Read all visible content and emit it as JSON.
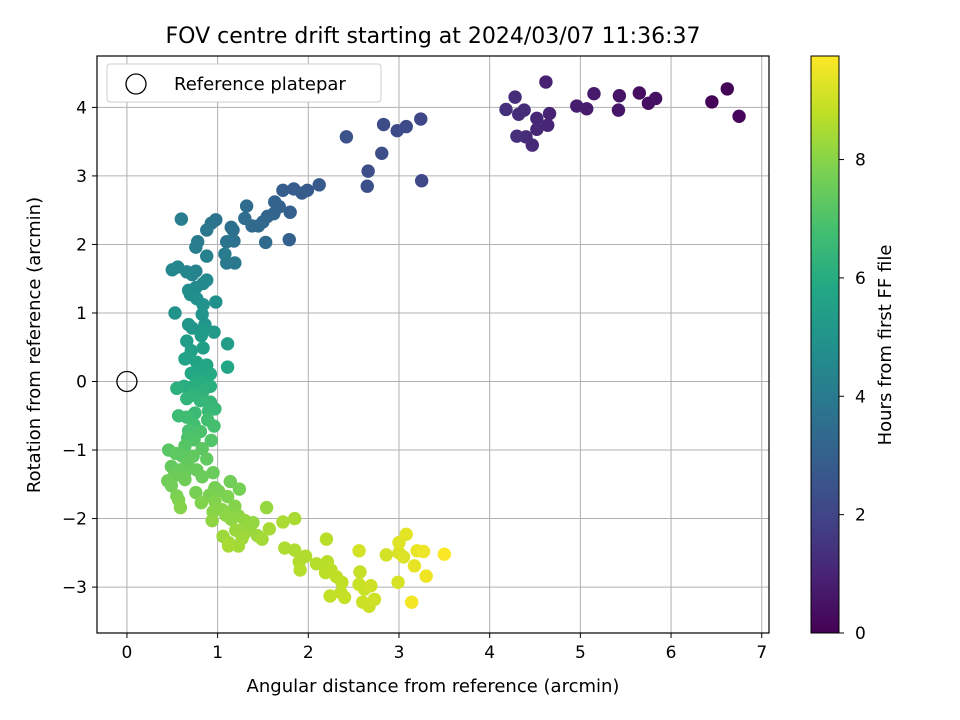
{
  "chart_data": {
    "type": "scatter",
    "title": "FOV centre drift starting at 2024/03/07 11:36:37",
    "xlabel": "Angular distance from reference (arcmin)",
    "ylabel": "Rotation from reference (arcmin)",
    "xlim": [
      -0.33,
      7.08
    ],
    "ylim": [
      -3.67,
      4.75
    ],
    "xticks": [
      0,
      1,
      2,
      3,
      4,
      5,
      6,
      7
    ],
    "yticks": [
      -3,
      -2,
      -1,
      0,
      1,
      2,
      3,
      4
    ],
    "tick_labels_x": [
      "0",
      "1",
      "2",
      "3",
      "4",
      "5",
      "6",
      "7"
    ],
    "tick_labels_y": [
      "−3",
      "−2",
      "−1",
      "0",
      "1",
      "2",
      "3",
      "4"
    ],
    "grid": true,
    "colormap": "viridis",
    "colorbar": {
      "label": "Hours from first FF file",
      "range": [
        0,
        9.75
      ],
      "ticks": [
        0,
        2,
        4,
        6,
        8
      ],
      "tick_labels": [
        "0",
        "2",
        "4",
        "6",
        "8"
      ]
    },
    "legend": {
      "position": "top-left",
      "entries": [
        {
          "label": "Reference platepar",
          "marker": "open-circle",
          "color": "#000000"
        }
      ]
    },
    "reference_point": {
      "x": 0,
      "y": 0
    },
    "points": [
      {
        "x": 6.45,
        "y": 4.08,
        "t": 0.05
      },
      {
        "x": 6.62,
        "y": 4.27,
        "t": 0.1
      },
      {
        "x": 6.75,
        "y": 3.87,
        "t": 0.15
      },
      {
        "x": 5.65,
        "y": 4.21,
        "t": 0.35
      },
      {
        "x": 5.75,
        "y": 4.06,
        "t": 0.4
      },
      {
        "x": 5.83,
        "y": 4.13,
        "t": 0.45
      },
      {
        "x": 5.43,
        "y": 4.17,
        "t": 0.55
      },
      {
        "x": 5.42,
        "y": 3.96,
        "t": 0.6
      },
      {
        "x": 5.15,
        "y": 4.2,
        "t": 0.7
      },
      {
        "x": 5.07,
        "y": 3.98,
        "t": 0.75
      },
      {
        "x": 4.96,
        "y": 4.02,
        "t": 0.8
      },
      {
        "x": 4.62,
        "y": 4.37,
        "t": 0.9
      },
      {
        "x": 4.66,
        "y": 3.91,
        "t": 0.95
      },
      {
        "x": 4.64,
        "y": 3.74,
        "t": 1.0
      },
      {
        "x": 4.52,
        "y": 3.84,
        "t": 1.05
      },
      {
        "x": 4.52,
        "y": 3.68,
        "t": 1.1
      },
      {
        "x": 4.47,
        "y": 3.45,
        "t": 1.15
      },
      {
        "x": 4.4,
        "y": 3.57,
        "t": 1.2
      },
      {
        "x": 4.38,
        "y": 3.96,
        "t": 1.2
      },
      {
        "x": 4.32,
        "y": 3.9,
        "t": 1.25
      },
      {
        "x": 4.28,
        "y": 4.15,
        "t": 1.25
      },
      {
        "x": 4.3,
        "y": 3.58,
        "t": 1.3
      },
      {
        "x": 4.18,
        "y": 3.97,
        "t": 1.35
      },
      {
        "x": 3.24,
        "y": 3.83,
        "t": 2.05
      },
      {
        "x": 3.25,
        "y": 2.93,
        "t": 2.1
      },
      {
        "x": 3.08,
        "y": 3.72,
        "t": 2.15
      },
      {
        "x": 2.98,
        "y": 3.66,
        "t": 2.2
      },
      {
        "x": 2.83,
        "y": 3.75,
        "t": 2.25
      },
      {
        "x": 2.81,
        "y": 3.33,
        "t": 2.3
      },
      {
        "x": 2.66,
        "y": 3.07,
        "t": 2.35
      },
      {
        "x": 2.65,
        "y": 2.85,
        "t": 2.4
      },
      {
        "x": 2.42,
        "y": 3.57,
        "t": 2.45
      },
      {
        "x": 2.12,
        "y": 2.87,
        "t": 2.7
      },
      {
        "x": 1.99,
        "y": 2.79,
        "t": 2.75
      },
      {
        "x": 1.93,
        "y": 2.75,
        "t": 2.8
      },
      {
        "x": 1.84,
        "y": 2.81,
        "t": 2.85
      },
      {
        "x": 1.72,
        "y": 2.79,
        "t": 2.9
      },
      {
        "x": 1.8,
        "y": 2.47,
        "t": 2.95
      },
      {
        "x": 1.79,
        "y": 2.07,
        "t": 3.0
      },
      {
        "x": 1.68,
        "y": 2.55,
        "t": 3.05
      },
      {
        "x": 1.63,
        "y": 2.62,
        "t": 3.1
      },
      {
        "x": 1.62,
        "y": 2.45,
        "t": 3.15
      },
      {
        "x": 1.55,
        "y": 2.41,
        "t": 3.2
      },
      {
        "x": 1.5,
        "y": 2.33,
        "t": 3.25
      },
      {
        "x": 1.45,
        "y": 2.27,
        "t": 3.3
      },
      {
        "x": 1.38,
        "y": 2.27,
        "t": 3.35
      },
      {
        "x": 1.53,
        "y": 2.03,
        "t": 3.4
      },
      {
        "x": 1.32,
        "y": 2.56,
        "t": 3.45
      },
      {
        "x": 1.3,
        "y": 2.38,
        "t": 3.5
      },
      {
        "x": 1.17,
        "y": 2.21,
        "t": 3.55
      },
      {
        "x": 1.15,
        "y": 2.25,
        "t": 3.6
      },
      {
        "x": 1.18,
        "y": 2.05,
        "t": 3.65
      },
      {
        "x": 1.1,
        "y": 2.04,
        "t": 3.7
      },
      {
        "x": 0.98,
        "y": 2.36,
        "t": 3.75
      },
      {
        "x": 0.93,
        "y": 2.31,
        "t": 3.8
      },
      {
        "x": 0.88,
        "y": 2.21,
        "t": 3.85
      },
      {
        "x": 1.19,
        "y": 1.73,
        "t": 3.9
      },
      {
        "x": 1.1,
        "y": 1.73,
        "t": 3.95
      },
      {
        "x": 1.08,
        "y": 1.86,
        "t": 4.0
      },
      {
        "x": 0.78,
        "y": 2.04,
        "t": 4.05
      },
      {
        "x": 0.76,
        "y": 1.96,
        "t": 4.1
      },
      {
        "x": 0.6,
        "y": 2.37,
        "t": 4.15
      },
      {
        "x": 0.88,
        "y": 1.83,
        "t": 4.2
      },
      {
        "x": 0.76,
        "y": 1.61,
        "t": 4.3
      },
      {
        "x": 0.72,
        "y": 1.56,
        "t": 4.35
      },
      {
        "x": 0.66,
        "y": 1.6,
        "t": 4.4
      },
      {
        "x": 0.56,
        "y": 1.67,
        "t": 4.45
      },
      {
        "x": 0.5,
        "y": 1.63,
        "t": 4.5
      },
      {
        "x": 0.88,
        "y": 1.48,
        "t": 4.55
      },
      {
        "x": 0.84,
        "y": 1.43,
        "t": 4.6
      },
      {
        "x": 0.76,
        "y": 1.37,
        "t": 4.65
      },
      {
        "x": 0.68,
        "y": 1.33,
        "t": 4.7
      },
      {
        "x": 0.7,
        "y": 1.27,
        "t": 4.75
      },
      {
        "x": 0.77,
        "y": 1.21,
        "t": 4.8
      },
      {
        "x": 0.98,
        "y": 1.16,
        "t": 4.85
      },
      {
        "x": 0.84,
        "y": 1.12,
        "t": 4.9
      },
      {
        "x": 0.53,
        "y": 1.0,
        "t": 4.95
      },
      {
        "x": 0.83,
        "y": 0.98,
        "t": 5.0
      },
      {
        "x": 0.86,
        "y": 0.83,
        "t": 5.05
      },
      {
        "x": 0.68,
        "y": 0.83,
        "t": 5.1
      },
      {
        "x": 0.72,
        "y": 0.78,
        "t": 5.15
      },
      {
        "x": 0.86,
        "y": 0.76,
        "t": 5.2
      },
      {
        "x": 0.96,
        "y": 0.72,
        "t": 5.25
      },
      {
        "x": 0.82,
        "y": 0.67,
        "t": 5.3
      },
      {
        "x": 0.66,
        "y": 0.59,
        "t": 5.35
      },
      {
        "x": 1.11,
        "y": 0.55,
        "t": 5.4
      },
      {
        "x": 0.84,
        "y": 0.49,
        "t": 5.45
      },
      {
        "x": 0.71,
        "y": 0.45,
        "t": 5.5
      },
      {
        "x": 0.67,
        "y": 0.35,
        "t": 5.55
      },
      {
        "x": 0.64,
        "y": 0.33,
        "t": 5.6
      },
      {
        "x": 0.77,
        "y": 0.28,
        "t": 5.65
      },
      {
        "x": 0.88,
        "y": 0.24,
        "t": 5.7
      },
      {
        "x": 1.11,
        "y": 0.21,
        "t": 5.75
      },
      {
        "x": 0.82,
        "y": 0.16,
        "t": 5.8
      },
      {
        "x": 0.71,
        "y": 0.12,
        "t": 5.85
      },
      {
        "x": 0.92,
        "y": 0.11,
        "t": 5.9
      },
      {
        "x": 0.78,
        "y": 0.04,
        "t": 5.95
      },
      {
        "x": 0.84,
        "y": -0.02,
        "t": 6.0
      },
      {
        "x": 0.63,
        "y": -0.07,
        "t": 6.05
      },
      {
        "x": 0.74,
        "y": -0.06,
        "t": 6.1
      },
      {
        "x": 0.92,
        "y": -0.07,
        "t": 6.15
      },
      {
        "x": 0.55,
        "y": -0.1,
        "t": 6.2
      },
      {
        "x": 0.84,
        "y": -0.14,
        "t": 6.25
      },
      {
        "x": 0.73,
        "y": -0.2,
        "t": 6.3
      },
      {
        "x": 0.66,
        "y": -0.25,
        "t": 6.35
      },
      {
        "x": 0.81,
        "y": -0.28,
        "t": 6.4
      },
      {
        "x": 0.92,
        "y": -0.3,
        "t": 6.45
      },
      {
        "x": 0.97,
        "y": -0.4,
        "t": 6.5
      },
      {
        "x": 0.9,
        "y": -0.43,
        "t": 6.55
      },
      {
        "x": 0.75,
        "y": -0.46,
        "t": 6.6
      },
      {
        "x": 0.57,
        "y": -0.5,
        "t": 6.65
      },
      {
        "x": 0.66,
        "y": -0.52,
        "t": 6.7
      },
      {
        "x": 0.89,
        "y": -0.56,
        "t": 6.75
      },
      {
        "x": 0.74,
        "y": -0.63,
        "t": 6.8
      },
      {
        "x": 0.96,
        "y": -0.65,
        "t": 6.85
      },
      {
        "x": 0.68,
        "y": -0.72,
        "t": 6.9
      },
      {
        "x": 0.81,
        "y": -0.73,
        "t": 6.95
      },
      {
        "x": 0.67,
        "y": -0.82,
        "t": 7.0
      },
      {
        "x": 0.74,
        "y": -0.85,
        "t": 7.05
      },
      {
        "x": 0.93,
        "y": -0.86,
        "t": 7.1
      },
      {
        "x": 0.64,
        "y": -0.94,
        "t": 7.15
      },
      {
        "x": 0.46,
        "y": -1.0,
        "t": 7.2
      },
      {
        "x": 0.83,
        "y": -0.98,
        "t": 7.25
      },
      {
        "x": 0.54,
        "y": -1.05,
        "t": 7.3
      },
      {
        "x": 0.61,
        "y": -1.09,
        "t": 7.3
      },
      {
        "x": 0.73,
        "y": -1.09,
        "t": 7.35
      },
      {
        "x": 0.88,
        "y": -1.13,
        "t": 7.35
      },
      {
        "x": 0.67,
        "y": -1.2,
        "t": 7.4
      },
      {
        "x": 0.49,
        "y": -1.24,
        "t": 7.4
      },
      {
        "x": 0.58,
        "y": -1.29,
        "t": 7.45
      },
      {
        "x": 0.77,
        "y": -1.29,
        "t": 7.45
      },
      {
        "x": 0.64,
        "y": -1.33,
        "t": 7.5
      },
      {
        "x": 0.95,
        "y": -1.33,
        "t": 7.5
      },
      {
        "x": 0.52,
        "y": -1.38,
        "t": 7.55
      },
      {
        "x": 0.83,
        "y": -1.39,
        "t": 7.55
      },
      {
        "x": 0.64,
        "y": -1.43,
        "t": 7.6
      },
      {
        "x": 0.45,
        "y": -1.45,
        "t": 7.6
      },
      {
        "x": 1.14,
        "y": -1.46,
        "t": 7.65
      },
      {
        "x": 0.49,
        "y": -1.52,
        "t": 7.65
      },
      {
        "x": 0.97,
        "y": -1.55,
        "t": 7.7
      },
      {
        "x": 1.24,
        "y": -1.57,
        "t": 7.7
      },
      {
        "x": 0.76,
        "y": -1.62,
        "t": 7.75
      },
      {
        "x": 1.01,
        "y": -1.6,
        "t": 7.75
      },
      {
        "x": 0.91,
        "y": -1.66,
        "t": 7.8
      },
      {
        "x": 0.55,
        "y": -1.67,
        "t": 7.8
      },
      {
        "x": 1.11,
        "y": -1.68,
        "t": 7.85
      },
      {
        "x": 0.57,
        "y": -1.73,
        "t": 7.85
      },
      {
        "x": 0.97,
        "y": -1.75,
        "t": 7.9
      },
      {
        "x": 0.82,
        "y": -1.77,
        "t": 7.9
      },
      {
        "x": 0.59,
        "y": -1.84,
        "t": 7.95
      },
      {
        "x": 1.19,
        "y": -1.82,
        "t": 7.95
      },
      {
        "x": 1.05,
        "y": -1.87,
        "t": 8.0
      },
      {
        "x": 0.95,
        "y": -1.9,
        "t": 8.0
      },
      {
        "x": 1.09,
        "y": -1.95,
        "t": 8.05
      },
      {
        "x": 1.23,
        "y": -1.96,
        "t": 8.05
      },
      {
        "x": 1.15,
        "y": -2.01,
        "t": 8.1
      },
      {
        "x": 0.94,
        "y": -2.03,
        "t": 8.1
      },
      {
        "x": 1.3,
        "y": -2.03,
        "t": 8.15
      },
      {
        "x": 1.39,
        "y": -2.06,
        "t": 8.15
      },
      {
        "x": 1.54,
        "y": -1.84,
        "t": 8.2
      },
      {
        "x": 1.36,
        "y": -2.12,
        "t": 8.2
      },
      {
        "x": 1.2,
        "y": -2.17,
        "t": 8.25
      },
      {
        "x": 1.3,
        "y": -2.21,
        "t": 8.25
      },
      {
        "x": 1.06,
        "y": -2.26,
        "t": 8.3
      },
      {
        "x": 1.44,
        "y": -2.25,
        "t": 8.3
      },
      {
        "x": 1.27,
        "y": -2.29,
        "t": 8.35
      },
      {
        "x": 1.12,
        "y": -2.35,
        "t": 8.35
      },
      {
        "x": 1.49,
        "y": -2.3,
        "t": 8.4
      },
      {
        "x": 1.23,
        "y": -2.4,
        "t": 8.4
      },
      {
        "x": 1.12,
        "y": -2.4,
        "t": 8.45
      },
      {
        "x": 1.57,
        "y": -2.15,
        "t": 8.45
      },
      {
        "x": 1.72,
        "y": -2.05,
        "t": 8.5
      },
      {
        "x": 1.85,
        "y": -2.0,
        "t": 8.5
      },
      {
        "x": 1.74,
        "y": -2.43,
        "t": 8.55
      },
      {
        "x": 1.85,
        "y": -2.46,
        "t": 8.55
      },
      {
        "x": 1.97,
        "y": -2.55,
        "t": 8.6
      },
      {
        "x": 1.9,
        "y": -2.63,
        "t": 8.6
      },
      {
        "x": 1.91,
        "y": -2.75,
        "t": 8.65
      },
      {
        "x": 2.09,
        "y": -2.66,
        "t": 8.65
      },
      {
        "x": 2.2,
        "y": -2.3,
        "t": 8.7
      },
      {
        "x": 2.21,
        "y": -2.63,
        "t": 8.7
      },
      {
        "x": 2.25,
        "y": -2.75,
        "t": 8.75
      },
      {
        "x": 2.19,
        "y": -2.79,
        "t": 8.75
      },
      {
        "x": 2.31,
        "y": -2.85,
        "t": 8.8
      },
      {
        "x": 2.37,
        "y": -2.93,
        "t": 8.8
      },
      {
        "x": 2.36,
        "y": -3.08,
        "t": 8.85
      },
      {
        "x": 2.24,
        "y": -3.13,
        "t": 8.85
      },
      {
        "x": 2.4,
        "y": -3.15,
        "t": 8.9
      },
      {
        "x": 2.57,
        "y": -2.78,
        "t": 8.9
      },
      {
        "x": 2.56,
        "y": -2.96,
        "t": 8.95
      },
      {
        "x": 2.62,
        "y": -3.03,
        "t": 8.95
      },
      {
        "x": 2.6,
        "y": -3.22,
        "t": 9.0
      },
      {
        "x": 2.67,
        "y": -3.28,
        "t": 9.0
      },
      {
        "x": 2.73,
        "y": -3.18,
        "t": 9.05
      },
      {
        "x": 2.69,
        "y": -2.98,
        "t": 9.05
      },
      {
        "x": 2.56,
        "y": -2.47,
        "t": 9.1
      },
      {
        "x": 2.86,
        "y": -2.53,
        "t": 9.1
      },
      {
        "x": 2.99,
        "y": -2.93,
        "t": 9.15
      },
      {
        "x": 3.0,
        "y": -2.5,
        "t": 9.2
      },
      {
        "x": 3.05,
        "y": -2.56,
        "t": 9.25
      },
      {
        "x": 3.0,
        "y": -2.35,
        "t": 9.3
      },
      {
        "x": 3.08,
        "y": -2.23,
        "t": 9.35
      },
      {
        "x": 3.17,
        "y": -2.69,
        "t": 9.4
      },
      {
        "x": 3.2,
        "y": -2.47,
        "t": 9.45
      },
      {
        "x": 3.27,
        "y": -2.48,
        "t": 9.5
      },
      {
        "x": 3.3,
        "y": -2.84,
        "t": 9.55
      },
      {
        "x": 3.14,
        "y": -3.22,
        "t": 9.6
      },
      {
        "x": 3.5,
        "y": -2.52,
        "t": 9.7
      }
    ]
  }
}
